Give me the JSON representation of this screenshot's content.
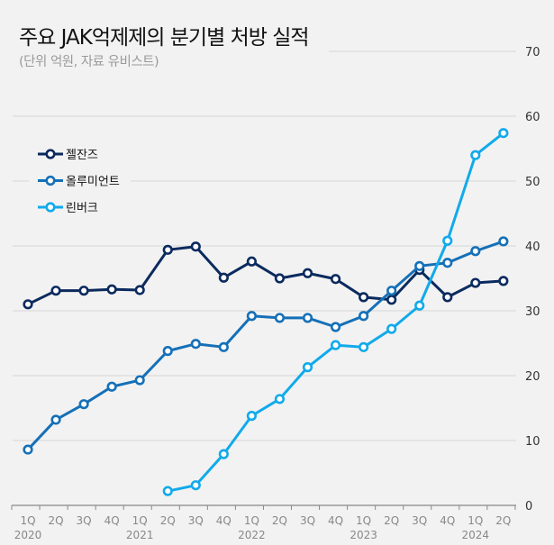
{
  "chart_data": {
    "type": "line",
    "title": "주요 JAK억제제의 분기별 처방 실적",
    "subtitle": "(단위 억원, 자료 유비스트)",
    "xlabel": "",
    "ylabel": "",
    "ylim": [
      0,
      70
    ],
    "yticks": [
      0,
      10,
      20,
      30,
      40,
      50,
      60,
      70
    ],
    "grid": true,
    "legend_position": "top-left",
    "quarters": [
      "1Q",
      "2Q",
      "3Q",
      "4Q",
      "1Q",
      "2Q",
      "3Q",
      "4Q",
      "1Q",
      "2Q",
      "3Q",
      "4Q",
      "1Q",
      "2Q",
      "3Q",
      "4Q",
      "1Q",
      "2Q"
    ],
    "years": [
      {
        "label": "2020",
        "index": 0
      },
      {
        "label": "2021",
        "index": 4
      },
      {
        "label": "2022",
        "index": 8
      },
      {
        "label": "2023",
        "index": 12
      },
      {
        "label": "2024",
        "index": 16
      }
    ],
    "series": [
      {
        "name": "젤잔즈",
        "color": "#0b2a5e",
        "values": [
          31.0,
          33.1,
          33.1,
          33.3,
          33.2,
          39.4,
          39.9,
          35.1,
          37.6,
          35.0,
          35.8,
          34.9,
          32.1,
          31.7,
          36.3,
          32.1,
          34.3,
          34.6
        ]
      },
      {
        "name": "올루미언트",
        "color": "#1570b8",
        "values": [
          8.6,
          13.2,
          15.6,
          18.3,
          19.3,
          23.8,
          24.9,
          24.4,
          29.2,
          28.9,
          28.9,
          27.5,
          29.2,
          33.1,
          36.9,
          37.4,
          39.2,
          40.7
        ]
      },
      {
        "name": "린버크",
        "color": "#11aaeb",
        "values": [
          null,
          null,
          null,
          null,
          null,
          2.2,
          3.1,
          7.9,
          13.8,
          16.4,
          21.3,
          24.7,
          24.4,
          27.2,
          30.8,
          40.8,
          54.0,
          57.4
        ]
      }
    ]
  }
}
